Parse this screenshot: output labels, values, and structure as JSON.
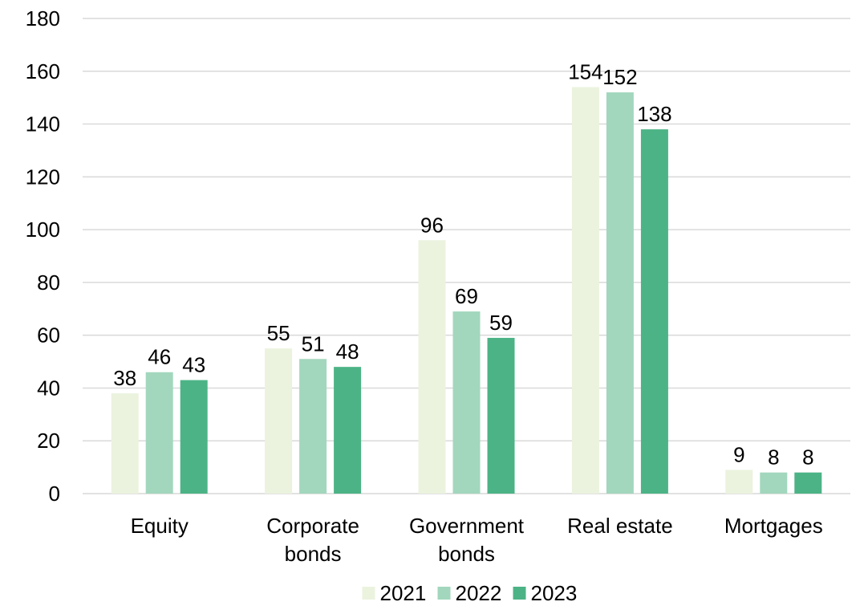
{
  "chart_data": {
    "type": "bar",
    "categories": [
      [
        "Equity"
      ],
      [
        "Corporate",
        "bonds"
      ],
      [
        "Government",
        "bonds"
      ],
      [
        "Real estate"
      ],
      [
        "Mortgages"
      ]
    ],
    "series": [
      {
        "name": "2021",
        "color": "#ebf3df",
        "values": [
          38,
          55,
          96,
          154,
          9
        ]
      },
      {
        "name": "2022",
        "color": "#a2d7bd",
        "values": [
          46,
          51,
          69,
          152,
          8
        ]
      },
      {
        "name": "2023",
        "color": "#4cb386",
        "values": [
          43,
          48,
          59,
          138,
          8
        ]
      }
    ],
    "yticks": [
      0,
      20,
      40,
      60,
      80,
      100,
      120,
      140,
      160,
      180
    ],
    "ylim": [
      0,
      180
    ],
    "grid": true,
    "legend_position": "bottom-center",
    "data_labels": true
  }
}
